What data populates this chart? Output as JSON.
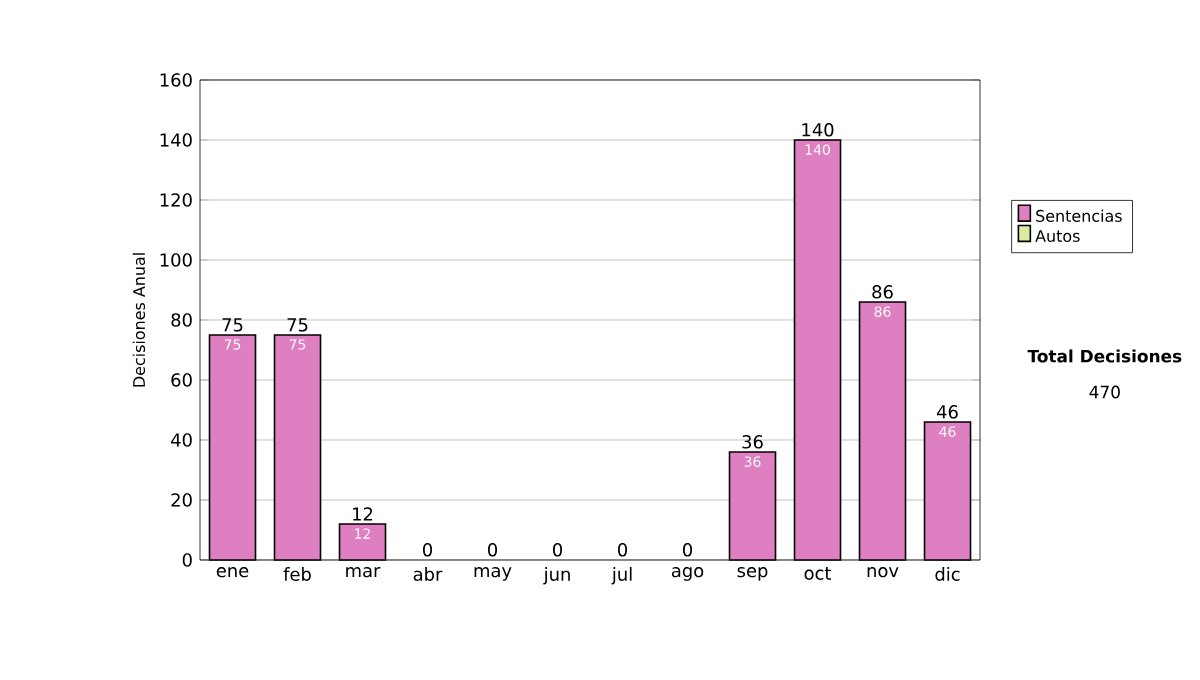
{
  "chart_data": {
    "type": "bar",
    "stacked": true,
    "ylabel": "Decisiones Anual",
    "categories": [
      "ene",
      "feb",
      "mar",
      "abr",
      "may",
      "jun",
      "jul",
      "ago",
      "sep",
      "oct",
      "nov",
      "dic"
    ],
    "series": [
      {
        "name": "Sentencias",
        "color": "#dd7fc0",
        "values": [
          75,
          75,
          12,
          0,
          0,
          0,
          0,
          0,
          36,
          140,
          86,
          46
        ],
        "value_labels": [
          "75",
          "75",
          "12",
          null,
          null,
          null,
          null,
          null,
          "36",
          "140",
          "86",
          "46"
        ]
      },
      {
        "name": "Autos",
        "color": "#d9eca0",
        "values": [
          0,
          0,
          0,
          0,
          0,
          0,
          0,
          0,
          0,
          0,
          0,
          0
        ]
      }
    ],
    "totals": [
      "75",
      "75",
      "12",
      "0",
      "0",
      "0",
      "0",
      "0",
      "36",
      "140",
      "86",
      "46"
    ],
    "ylim": [
      0,
      160
    ],
    "yticks": [
      0,
      20,
      40,
      60,
      80,
      100,
      120,
      140,
      160
    ],
    "grid": "y",
    "legend": "right",
    "annotations": [
      "Total Decisiones",
      "470"
    ]
  }
}
